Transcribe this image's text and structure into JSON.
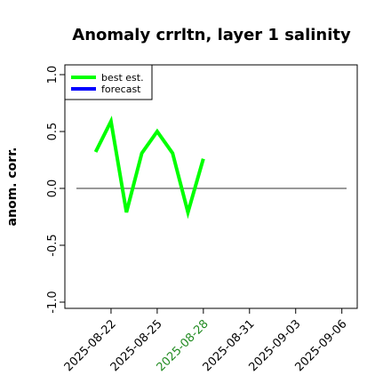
{
  "chart_data": {
    "type": "line",
    "title": "Anomaly crrltn, layer 1 salinity",
    "xlabel": "",
    "ylabel": "anom. corr.",
    "ylim": [
      -1.0,
      1.0
    ],
    "xlim": [
      "2025-08-19",
      "2025-09-07"
    ],
    "yticks": [
      "-1.0",
      "-0.5",
      "0.0",
      "0.5",
      "1.0"
    ],
    "xticks": [
      {
        "label": "2025-08-22",
        "date": "2025-08-22",
        "color": "#000000"
      },
      {
        "label": "2025-08-25",
        "date": "2025-08-25",
        "color": "#000000"
      },
      {
        "label": "2025-08-28",
        "date": "2025-08-28",
        "color": "#228b22"
      },
      {
        "label": "2025-08-31",
        "date": "2025-08-31",
        "color": "#000000"
      },
      {
        "label": "2025-09-03",
        "date": "2025-09-03",
        "color": "#000000"
      },
      {
        "label": "2025-09-06",
        "date": "2025-09-06",
        "color": "#000000"
      }
    ],
    "reference_line": 0.0,
    "legend_position": "top-left",
    "series": [
      {
        "name": "best est.",
        "color": "#00ff00",
        "x": [
          "2025-08-21",
          "2025-08-22",
          "2025-08-23",
          "2025-08-24",
          "2025-08-25",
          "2025-08-26",
          "2025-08-27",
          "2025-08-28"
        ],
        "values": [
          0.32,
          0.59,
          -0.21,
          0.31,
          0.5,
          0.31,
          -0.21,
          0.26
        ]
      },
      {
        "name": "forecast",
        "color": "#0000ff",
        "x": [],
        "values": []
      }
    ]
  }
}
